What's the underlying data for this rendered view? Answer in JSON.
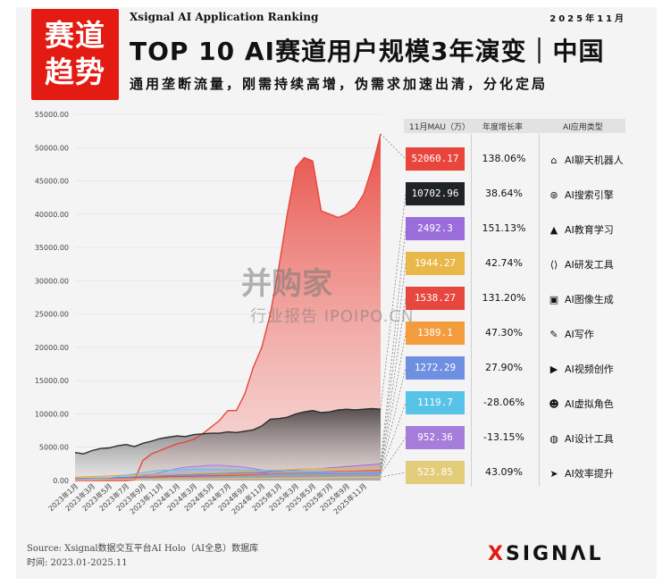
{
  "badge": {
    "line1": "赛道",
    "line2": "趋势"
  },
  "source_title": "Xsignal AI Application Ranking",
  "date": "2025年11月",
  "title": "TOP 10 AI赛道用户规模3年演变｜中国",
  "subtitle": "通用垄断流量，刚需持续高增，伪需求加速出清，分化定局",
  "table_headers": {
    "mau": "11月MAU（万）",
    "growth": "年度增长率",
    "type": "AI应用类型"
  },
  "watermark": {
    "line1": "并购家",
    "line2": "行业报告 IPOIPO.CN"
  },
  "footer": {
    "source": "Source:  Xsignal数据交互平台AI Holo（AI全息）数据库",
    "period": "时间:  2023.01-2025.11"
  },
  "logo": {
    "x": "X",
    "rest": "SIGNΛL"
  },
  "colors": {
    "brand_red": "#e31b12",
    "chart_red": "#e8483f",
    "chart_dark": "#404040"
  },
  "chart_data": {
    "type": "area",
    "title": "TOP 10 AI赛道用户规模3年演变｜中国",
    "xlabel": "",
    "ylabel": "",
    "ylim": [
      0,
      55000
    ],
    "yticks": [
      "0.00",
      "5000.00",
      "10000.00",
      "15000.00",
      "20000.00",
      "25000.00",
      "30000.00",
      "35000.00",
      "40000.00",
      "45000.00",
      "50000.00",
      "55000.00"
    ],
    "x_ticks": [
      "2023年1月",
      "2023年3月",
      "2023年5月",
      "2023年7月",
      "2023年9月",
      "2023年11月",
      "2024年1月",
      "2024年3月",
      "2024年5月",
      "2024年7月",
      "2024年9月",
      "2024年11月",
      "2025年1月",
      "2025年3月",
      "2025年5月",
      "2025年7月",
      "2025年9月",
      "2025年11月"
    ],
    "series": [
      {
        "type_name": "AI聊天机器人",
        "color": "#e8453c",
        "mau": "52060.17",
        "growth": "138.06%",
        "icon": "robot-icon",
        "values": [
          0,
          0,
          0,
          0,
          0,
          0,
          0,
          100,
          3000,
          4000,
          4500,
          5000,
          5500,
          5800,
          6200,
          7000,
          8000,
          9000,
          10500,
          10500,
          13000,
          17000,
          20000,
          25000,
          32000,
          40000,
          47000,
          48500,
          48000,
          40500,
          40000,
          39500,
          40000,
          41000,
          43000,
          47000,
          52060
        ]
      },
      {
        "type_name": "AI搜索引擎",
        "color": "#2c2c2c",
        "mau": "10702.96",
        "growth": "38.64%",
        "icon": "search-engine-icon",
        "values": [
          4200,
          4000,
          4500,
          4800,
          4900,
          5200,
          5400,
          5100,
          5600,
          5900,
          6300,
          6500,
          6700,
          6600,
          6900,
          7000,
          7100,
          7100,
          7300,
          7200,
          7400,
          7600,
          8200,
          9200,
          9300,
          9500,
          10000,
          10300,
          10500,
          10200,
          10300,
          10600,
          10700,
          10600,
          10700,
          10800,
          10703
        ]
      },
      {
        "type_name": "AI教育学习",
        "color": "#9b6ddb",
        "mau": "2492.3",
        "growth": "151.13%",
        "icon": "graduation-cap-icon",
        "values": [
          300,
          300,
          300,
          350,
          400,
          400,
          450,
          500,
          550,
          600,
          650,
          700,
          750,
          800,
          850,
          900,
          950,
          1000,
          1050,
          1100,
          1150,
          1200,
          1250,
          1300,
          1400,
          1500,
          1600,
          1700,
          1750,
          1800,
          1900,
          2000,
          2100,
          2200,
          2300,
          2400,
          2492
        ]
      },
      {
        "type_name": "AI研发工具",
        "color": "#e9b84a",
        "mau": "1944.27",
        "growth": "42.74%",
        "icon": "code-icon",
        "values": [
          200,
          220,
          250,
          300,
          350,
          400,
          450,
          500,
          550,
          600,
          700,
          800,
          900,
          1000,
          1100,
          1150,
          1200,
          1250,
          1300,
          1350,
          1400,
          1450,
          1500,
          1550,
          1600,
          1650,
          1700,
          1720,
          1750,
          1780,
          1800,
          1830,
          1860,
          1880,
          1900,
          1920,
          1944
        ]
      },
      {
        "type_name": "AI图像生成",
        "color": "#e6473f",
        "mau": "1538.27",
        "growth": "131.20%",
        "icon": "image-icon",
        "values": [
          200,
          250,
          300,
          300,
          350,
          400,
          400,
          450,
          500,
          500,
          550,
          600,
          600,
          650,
          650,
          700,
          700,
          750,
          750,
          800,
          850,
          900,
          950,
          1000,
          1050,
          1100,
          1150,
          1200,
          1250,
          1300,
          1350,
          1400,
          1420,
          1450,
          1480,
          1510,
          1538
        ]
      },
      {
        "type_name": "AI写作",
        "color": "#f39c3d",
        "mau": "1389.1",
        "growth": "47.30%",
        "icon": "quill-icon",
        "values": [
          500,
          550,
          600,
          650,
          700,
          750,
          800,
          850,
          900,
          950,
          950,
          940,
          930,
          920,
          930,
          940,
          950,
          960,
          970,
          980,
          990,
          1000,
          1050,
          1100,
          1150,
          1200,
          1220,
          1240,
          1260,
          1280,
          1300,
          1320,
          1340,
          1350,
          1360,
          1375,
          1389
        ]
      },
      {
        "type_name": "AI视频创作",
        "color": "#6f8fe0",
        "mau": "1272.29",
        "growth": "27.90%",
        "icon": "video-icon",
        "values": [
          300,
          320,
          350,
          380,
          400,
          450,
          500,
          550,
          600,
          650,
          700,
          750,
          800,
          850,
          900,
          950,
          1000,
          1050,
          1100,
          1150,
          1200,
          1150,
          1100,
          1000,
          1050,
          1100,
          1120,
          1140,
          1160,
          1180,
          1200,
          1210,
          1220,
          1240,
          1250,
          1260,
          1272
        ]
      },
      {
        "type_name": "AI虚拟角色",
        "color": "#57c3e8",
        "mau": "1119.7",
        "growth": "-28.06%",
        "icon": "avatar-icon",
        "values": [
          100,
          150,
          200,
          300,
          400,
          600,
          800,
          1000,
          1200,
          1400,
          1500,
          1550,
          1600,
          1650,
          1700,
          1680,
          1650,
          1620,
          1600,
          1580,
          1560,
          1540,
          1520,
          1500,
          1480,
          1450,
          1420,
          1380,
          1340,
          1300,
          1260,
          1230,
          1200,
          1180,
          1160,
          1140,
          1120
        ]
      },
      {
        "type_name": "AI设计工具",
        "color": "#a77ddc",
        "mau": "952.36",
        "growth": "-13.15%",
        "icon": "palette-icon",
        "values": [
          50,
          80,
          100,
          150,
          200,
          300,
          400,
          500,
          700,
          900,
          1200,
          1500,
          1800,
          2000,
          2100,
          2200,
          2300,
          2300,
          2200,
          2100,
          2000,
          1800,
          1600,
          1400,
          1300,
          1200,
          1150,
          1100,
          1080,
          1060,
          1040,
          1020,
          1000,
          990,
          980,
          965,
          952
        ]
      },
      {
        "type_name": "AI效率提升",
        "color": "#e3cc7a",
        "mau": "523.85",
        "growth": "43.09%",
        "icon": "rocket-icon",
        "values": [
          100,
          110,
          120,
          130,
          140,
          150,
          160,
          170,
          180,
          190,
          200,
          210,
          220,
          230,
          240,
          250,
          260,
          270,
          280,
          290,
          300,
          310,
          320,
          330,
          340,
          350,
          360,
          380,
          400,
          420,
          440,
          460,
          470,
          480,
          500,
          510,
          524
        ]
      }
    ]
  }
}
